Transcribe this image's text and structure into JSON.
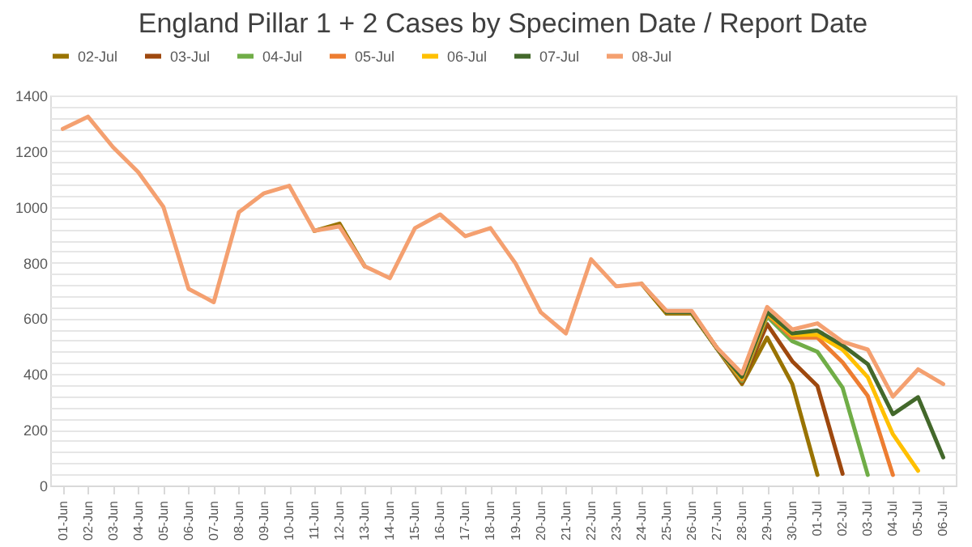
{
  "chart_data": {
    "type": "line",
    "title": "England Pillar 1 + 2 Cases by Specimen Date / Report Date",
    "categories": [
      "01-Jun",
      "02-Jun",
      "03-Jun",
      "04-Jun",
      "05-Jun",
      "06-Jun",
      "07-Jun",
      "08-Jun",
      "09-Jun",
      "10-Jun",
      "11-Jun",
      "12-Jun",
      "13-Jun",
      "14-Jun",
      "15-Jun",
      "16-Jun",
      "17-Jun",
      "18-Jun",
      "19-Jun",
      "20-Jun",
      "21-Jun",
      "22-Jun",
      "23-Jun",
      "24-Jun",
      "25-Jun",
      "26-Jun",
      "27-Jun",
      "28-Jun",
      "29-Jun",
      "30-Jun",
      "01-Jul",
      "02-Jul",
      "03-Jul",
      "04-Jul",
      "05-Jul",
      "06-Jul"
    ],
    "series": [
      {
        "name": "02-Jul",
        "color": "#997300",
        "values": [
          null,
          null,
          null,
          null,
          null,
          null,
          null,
          null,
          null,
          null,
          914,
          940,
          787,
          null,
          null,
          null,
          null,
          null,
          null,
          null,
          null,
          null,
          null,
          725,
          617,
          617,
          493,
          364,
          531,
          364,
          38,
          null,
          null,
          null,
          null,
          null
        ]
      },
      {
        "name": "03-Jul",
        "color": "#9e480e",
        "values": [
          null,
          null,
          null,
          null,
          null,
          null,
          null,
          null,
          null,
          null,
          null,
          null,
          null,
          null,
          null,
          null,
          null,
          null,
          null,
          null,
          null,
          null,
          null,
          null,
          622,
          622,
          493,
          370,
          579,
          446,
          357,
          42,
          null,
          null,
          null,
          null
        ]
      },
      {
        "name": "04-Jul",
        "color": "#70ad47",
        "values": [
          null,
          null,
          null,
          null,
          null,
          null,
          null,
          null,
          null,
          null,
          null,
          null,
          null,
          null,
          null,
          null,
          null,
          null,
          null,
          null,
          null,
          null,
          null,
          null,
          622,
          622,
          493,
          375,
          607,
          518,
          480,
          351,
          38,
          null,
          null,
          null
        ]
      },
      {
        "name": "05-Jul",
        "color": "#ed7d31",
        "values": [
          null,
          null,
          null,
          null,
          null,
          null,
          null,
          null,
          null,
          null,
          null,
          null,
          null,
          null,
          null,
          null,
          null,
          null,
          null,
          null,
          null,
          null,
          null,
          null,
          622,
          622,
          493,
          380,
          615,
          531,
          531,
          442,
          322,
          38,
          null,
          null
        ]
      },
      {
        "name": "06-Jul",
        "color": "#ffc000",
        "values": [
          null,
          null,
          null,
          null,
          null,
          null,
          null,
          null,
          null,
          null,
          null,
          null,
          null,
          null,
          null,
          null,
          null,
          null,
          null,
          null,
          null,
          null,
          null,
          null,
          622,
          622,
          493,
          385,
          618,
          541,
          541,
          488,
          389,
          184,
          53,
          null
        ]
      },
      {
        "name": "07-Jul",
        "color": "#43682b",
        "values": [
          null,
          null,
          null,
          null,
          null,
          null,
          null,
          null,
          null,
          null,
          null,
          null,
          null,
          null,
          null,
          null,
          null,
          null,
          null,
          null,
          null,
          null,
          null,
          null,
          622,
          622,
          493,
          390,
          622,
          546,
          556,
          503,
          436,
          256,
          317,
          101
        ]
      },
      {
        "name": "08-Jul",
        "color": "#f4a070",
        "values": [
          1280,
          1324,
          1214,
          1125,
          1000,
          706,
          658,
          981,
          1049,
          1076,
          914,
          930,
          787,
          744,
          924,
          973,
          895,
          924,
          797,
          622,
          546,
          812,
          715,
          725,
          627,
          627,
          495,
          402,
          641,
          560,
          582,
          516,
          488,
          319,
          417,
          364
        ]
      }
    ],
    "ylim": [
      0,
      1400
    ],
    "yticks": [
      0,
      {
        "value": 40,
        "label": null
      },
      {
        "value": 80,
        "label": null
      },
      {
        "value": 120,
        "label": null
      },
      {
        "value": 160,
        "label": null
      },
      200,
      {
        "value": 240,
        "label": null
      },
      {
        "value": 280,
        "label": null
      },
      {
        "value": 320,
        "label": null
      },
      {
        "value": 360,
        "label": null
      },
      400,
      {
        "value": 440,
        "label": null
      },
      {
        "value": 480,
        "label": null
      },
      {
        "value": 520,
        "label": null
      },
      {
        "value": 560,
        "label": null
      },
      600,
      {
        "value": 640,
        "label": null
      },
      {
        "value": 680,
        "label": null
      },
      {
        "value": 720,
        "label": null
      },
      {
        "value": 760,
        "label": null
      },
      800,
      {
        "value": 840,
        "label": null
      },
      {
        "value": 880,
        "label": null
      },
      {
        "value": 920,
        "label": null
      },
      {
        "value": 960,
        "label": null
      },
      1000,
      {
        "value": 1040,
        "label": null
      },
      {
        "value": 1080,
        "label": null
      },
      {
        "value": 1120,
        "label": null
      },
      {
        "value": 1160,
        "label": null
      },
      1200,
      {
        "value": 1240,
        "label": null
      },
      {
        "value": 1280,
        "label": null
      },
      {
        "value": 1320,
        "label": null
      },
      {
        "value": 1360,
        "label": null
      },
      1400
    ],
    "grid": "y",
    "legend": "top",
    "marker": "none",
    "line_style": "solid"
  }
}
